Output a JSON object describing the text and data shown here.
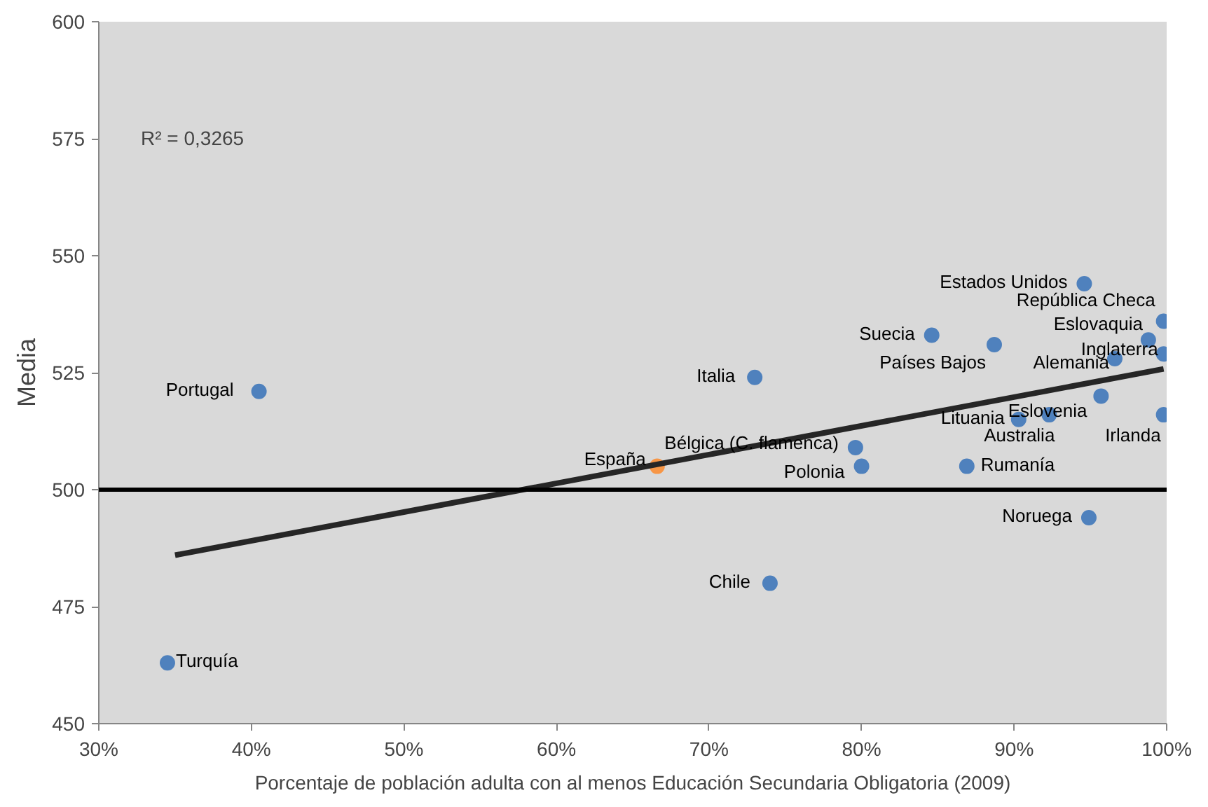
{
  "chart_data": {
    "type": "scatter",
    "xlabel": "Porcentaje de población adulta con al menos Educación Secundaria Obligatoria (2009)",
    "ylabel": "Media",
    "xlim": [
      30,
      100
    ],
    "ylim": [
      450,
      600
    ],
    "xticks": [
      {
        "value": 30,
        "label": "30%"
      },
      {
        "value": 40,
        "label": "40%"
      },
      {
        "value": 50,
        "label": "50%"
      },
      {
        "value": 60,
        "label": "60%"
      },
      {
        "value": 70,
        "label": "70%"
      },
      {
        "value": 80,
        "label": "80%"
      },
      {
        "value": 90,
        "label": "90%"
      },
      {
        "value": 100,
        "label": "100%"
      }
    ],
    "yticks": [
      450,
      475,
      500,
      525,
      550,
      575,
      600
    ],
    "grid": false,
    "marker": "circle",
    "annotations": [
      "R² = 0,3265"
    ],
    "ref_lines": [
      {
        "axis": "y",
        "value": 500,
        "color": "#000000"
      }
    ],
    "series": [
      {
        "type": "scatter",
        "color": "#4f81bd",
        "x": [
          40.5,
          34.5,
          66.6,
          73.0,
          74.0,
          94.6,
          99.8,
          98.8,
          99.8,
          96.6,
          84.6,
          88.7,
          95.7,
          90.3,
          92.3,
          99.8,
          79.6,
          80.0,
          86.9,
          94.9
        ],
        "values": [
          521,
          463,
          505,
          524,
          480,
          544,
          536,
          532,
          529,
          528,
          533,
          531,
          520,
          515,
          516,
          516,
          509,
          505,
          505,
          494
        ],
        "colors": [
          "#4f81bd",
          "#4f81bd",
          "#f79646",
          "#4f81bd",
          "#4f81bd",
          "#4f81bd",
          "#4f81bd",
          "#4f81bd",
          "#4f81bd",
          "#4f81bd",
          "#4f81bd",
          "#4f81bd",
          "#4f81bd",
          "#4f81bd",
          "#4f81bd",
          "#4f81bd",
          "#4f81bd",
          "#4f81bd",
          "#4f81bd",
          "#4f81bd"
        ],
        "value_labels": [
          "Portugal",
          "Turquía",
          "España",
          "Italia",
          "Chile",
          "Estados Unidos",
          "República Checa",
          "Eslovaquia",
          "Inglaterra",
          "Alemania",
          "Suecia",
          "Países Bajos",
          "Eslovenia",
          "Lituania",
          "Australia",
          "Irlanda",
          "Bélgica (C. flamenca)",
          "Polonia",
          "Rumanía",
          "Noruega"
        ]
      },
      {
        "type": "line",
        "color": "#262626",
        "x": [
          35.0,
          99.8
        ],
        "values": [
          486,
          525.8
        ],
        "marker": "none"
      }
    ]
  }
}
